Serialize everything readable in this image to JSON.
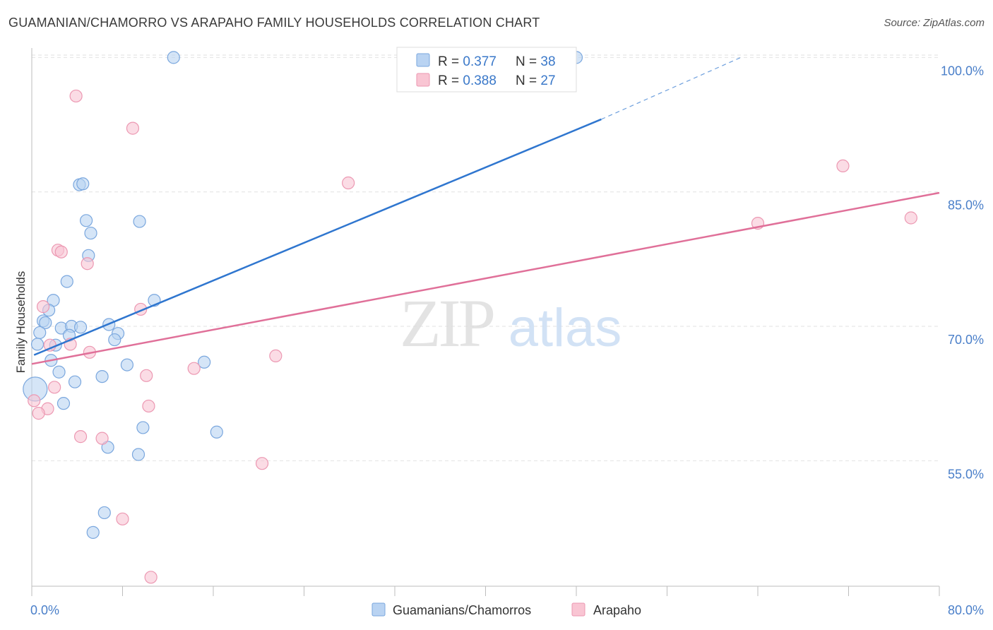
{
  "header": {
    "title": "GUAMANIAN/CHAMORRO VS ARAPAHO FAMILY HOUSEHOLDS CORRELATION CHART",
    "source": "Source: ZipAtlas.com"
  },
  "watermark": {
    "zip": "ZIP",
    "atlas": "atlas"
  },
  "colors": {
    "blue_fill": "#b9d3f2",
    "blue_stroke": "#7aa7de",
    "blue_line": "#2f76cf",
    "pink_fill": "#f9c5d3",
    "pink_stroke": "#ec98b2",
    "pink_line": "#e07099",
    "tick_text": "#4a7fc9",
    "grid": "#e2e2e2"
  },
  "legend": {
    "rows": [
      {
        "r_label": "R = ",
        "r_value": "0.377",
        "n_label": "N = ",
        "n_value": "38"
      },
      {
        "r_label": "R = ",
        "r_value": "0.388",
        "n_label": "N = ",
        "n_value": "27"
      }
    ]
  },
  "chart_data": {
    "type": "scatter",
    "title": "GUAMANIAN/CHAMORRO VS ARAPAHO FAMILY HOUSEHOLDS CORRELATION CHART",
    "xlabel": "",
    "ylabel": "Family Households",
    "xlim": [
      0,
      80
    ],
    "ylim": [
      41,
      102
    ],
    "x_tick_labels": [
      "0.0%",
      "80.0%"
    ],
    "y_ticks": [
      55,
      70,
      85,
      100
    ],
    "y_tick_labels": [
      "55.0%",
      "70.0%",
      "85.0%",
      "100.0%"
    ],
    "grid": true,
    "legend_position": "bottom-center",
    "series": [
      {
        "name": "Guamanians/Chamorros",
        "color": "#b9d3f2",
        "points": [
          {
            "x": 12.5,
            "y": 100.0
          },
          {
            "x": 48.0,
            "y": 100.0
          },
          {
            "x": 4.2,
            "y": 85.8
          },
          {
            "x": 4.5,
            "y": 85.9
          },
          {
            "x": 4.8,
            "y": 81.8
          },
          {
            "x": 9.5,
            "y": 81.7
          },
          {
            "x": 5.2,
            "y": 80.4
          },
          {
            "x": 5.0,
            "y": 77.9
          },
          {
            "x": 3.1,
            "y": 75.0
          },
          {
            "x": 1.9,
            "y": 72.9
          },
          {
            "x": 10.8,
            "y": 72.9
          },
          {
            "x": 1.5,
            "y": 71.8
          },
          {
            "x": 1.0,
            "y": 70.6
          },
          {
            "x": 1.2,
            "y": 70.4
          },
          {
            "x": 6.8,
            "y": 70.2
          },
          {
            "x": 2.6,
            "y": 69.8
          },
          {
            "x": 3.5,
            "y": 70.0
          },
          {
            "x": 4.3,
            "y": 69.9
          },
          {
            "x": 0.7,
            "y": 69.3
          },
          {
            "x": 7.6,
            "y": 69.2
          },
          {
            "x": 3.3,
            "y": 69.0
          },
          {
            "x": 7.3,
            "y": 68.5
          },
          {
            "x": 0.5,
            "y": 68.0
          },
          {
            "x": 2.1,
            "y": 67.9
          },
          {
            "x": 1.7,
            "y": 66.2
          },
          {
            "x": 8.4,
            "y": 65.7
          },
          {
            "x": 15.2,
            "y": 66.0
          },
          {
            "x": 2.4,
            "y": 64.9
          },
          {
            "x": 6.2,
            "y": 64.4
          },
          {
            "x": 3.8,
            "y": 63.8
          },
          {
            "x": 0.3,
            "y": 63.0
          },
          {
            "x": 2.8,
            "y": 61.4
          },
          {
            "x": 9.8,
            "y": 58.7
          },
          {
            "x": 16.3,
            "y": 58.2
          },
          {
            "x": 6.7,
            "y": 56.5
          },
          {
            "x": 9.4,
            "y": 55.7
          },
          {
            "x": 6.4,
            "y": 49.2
          },
          {
            "x": 5.4,
            "y": 47.0
          }
        ]
      },
      {
        "name": "Arapaho",
        "color": "#f9c5d3",
        "points": [
          {
            "x": 3.9,
            "y": 95.7
          },
          {
            "x": 8.9,
            "y": 92.1
          },
          {
            "x": 27.9,
            "y": 86.0
          },
          {
            "x": 71.5,
            "y": 87.9
          },
          {
            "x": 64.0,
            "y": 81.5
          },
          {
            "x": 77.5,
            "y": 82.1
          },
          {
            "x": 2.3,
            "y": 78.5
          },
          {
            "x": 2.6,
            "y": 78.3
          },
          {
            "x": 4.9,
            "y": 77.0
          },
          {
            "x": 1.0,
            "y": 72.2
          },
          {
            "x": 9.6,
            "y": 71.9
          },
          {
            "x": 1.6,
            "y": 67.9
          },
          {
            "x": 3.4,
            "y": 68.0
          },
          {
            "x": 5.1,
            "y": 67.1
          },
          {
            "x": 21.5,
            "y": 66.7
          },
          {
            "x": 14.3,
            "y": 65.3
          },
          {
            "x": 10.1,
            "y": 64.5
          },
          {
            "x": 2.0,
            "y": 63.2
          },
          {
            "x": 0.2,
            "y": 61.7
          },
          {
            "x": 10.3,
            "y": 61.1
          },
          {
            "x": 1.4,
            "y": 60.8
          },
          {
            "x": 0.6,
            "y": 60.3
          },
          {
            "x": 4.3,
            "y": 57.7
          },
          {
            "x": 6.2,
            "y": 57.5
          },
          {
            "x": 20.3,
            "y": 54.7
          },
          {
            "x": 8.0,
            "y": 48.5
          },
          {
            "x": 10.5,
            "y": 42.0
          }
        ]
      }
    ],
    "trend_lines": [
      {
        "series": "Guamanians/Chamorros",
        "x0": 0.2,
        "y0": 66.8,
        "x1": 50.2,
        "y1": 93.1,
        "dash_to_x": 62.5,
        "dash_to_y": 100.0
      },
      {
        "series": "Arapaho",
        "x0": 0.0,
        "y0": 65.8,
        "x1": 80.0,
        "y1": 84.9
      }
    ]
  }
}
